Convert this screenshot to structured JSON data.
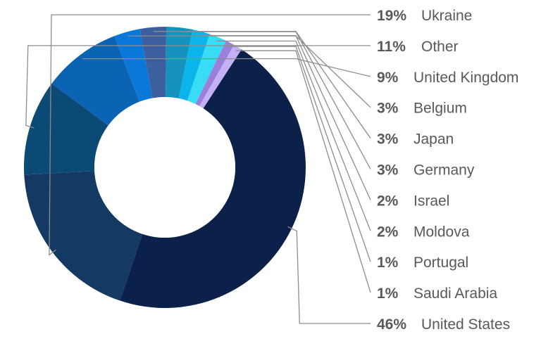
{
  "chart_data": {
    "type": "pie",
    "donut": true,
    "title": "",
    "unit": "%",
    "slices": [
      {
        "label": "United States",
        "value": 46,
        "pct_text": "46%",
        "color": "#0c2149"
      },
      {
        "label": "Ukraine",
        "value": 19,
        "pct_text": "19%",
        "color": "#143a64"
      },
      {
        "label": "Other",
        "value": 11,
        "pct_text": "11%",
        "color": "#0b4a74"
      },
      {
        "label": "United Kingdom",
        "value": 9,
        "pct_text": "9%",
        "color": "#0b63b4"
      },
      {
        "label": "Belgium",
        "value": 3,
        "pct_text": "3%",
        "color": "#0a78d8"
      },
      {
        "label": "Japan",
        "value": 3,
        "pct_text": "3%",
        "color": "#3b5f9f"
      },
      {
        "label": "Germany",
        "value": 3,
        "pct_text": "3%",
        "color": "#1592bd"
      },
      {
        "label": "Israel",
        "value": 2,
        "pct_text": "2%",
        "color": "#0ab5eb"
      },
      {
        "label": "Moldova",
        "value": 2,
        "pct_text": "2%",
        "color": "#39dcf5"
      },
      {
        "label": "Portugal",
        "value": 1,
        "pct_text": "1%",
        "color": "#9b7fd9"
      },
      {
        "label": "Saudi Arabia",
        "value": 1,
        "pct_text": "1%",
        "color": "#c4b0f5"
      }
    ],
    "legend_order": [
      "Ukraine",
      "Other",
      "United Kingdom",
      "Belgium",
      "Japan",
      "Germany",
      "Israel",
      "Moldova",
      "Portugal",
      "Saudi Arabia",
      "United States"
    ]
  }
}
